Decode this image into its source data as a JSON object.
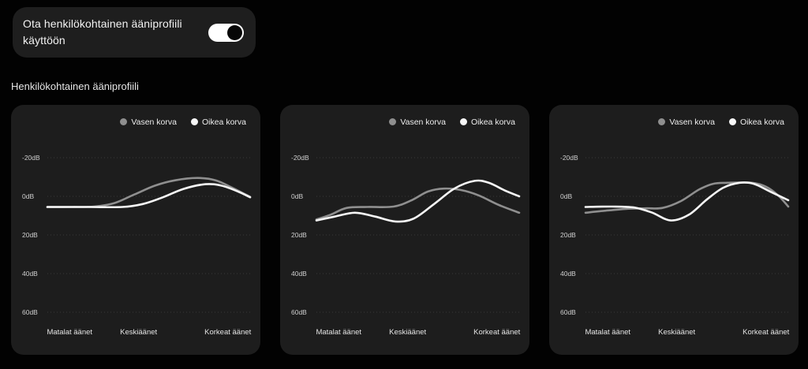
{
  "toggle_card": {
    "label": "Ota henkilökohtainen ääniprofiili käyttöön",
    "state": "on"
  },
  "section_title": "Henkilökohtainen ääniprofiili",
  "colors": {
    "page_bg": "#020202",
    "card_bg": "#1d1d1d",
    "grid_line": "#3d3d3d",
    "tick_text": "#cfcfcf",
    "axis_text": "#e3e3e3",
    "legend_text": "#ececec",
    "left_ear": "#8f8f8f",
    "right_ear": "#f7f7f7",
    "toggle_track": "#ffffff",
    "toggle_knob": "#070707"
  },
  "chart_data": [
    {
      "type": "line",
      "y_axis": {
        "unit": "dB",
        "inverted": true,
        "range": [
          -20,
          60
        ],
        "ticks": [
          {
            "label": "-20dB",
            "value": -20
          },
          {
            "label": "0dB",
            "value": 0
          },
          {
            "label": "20dB",
            "value": 20
          },
          {
            "label": "40dB",
            "value": 40
          },
          {
            "label": "60dB",
            "value": 60
          }
        ]
      },
      "x_labels": [
        "Matalat äänet",
        "Keskiäänet",
        "Korkeat äänet"
      ],
      "series": [
        {
          "name": "Vasen korva",
          "color": "#8f8f8f",
          "points": [
            [
              0,
              5.5
            ],
            [
              0.12,
              5.5
            ],
            [
              0.23,
              5.3
            ],
            [
              0.33,
              3.5
            ],
            [
              0.43,
              -1
            ],
            [
              0.53,
              -5.5
            ],
            [
              0.63,
              -8.3
            ],
            [
              0.74,
              -9.5
            ],
            [
              0.83,
              -8.3
            ],
            [
              0.92,
              -4
            ],
            [
              1,
              0.3
            ]
          ]
        },
        {
          "name": "Oikea korva",
          "color": "#f7f7f7",
          "points": [
            [
              0,
              5.5
            ],
            [
              0.2,
              5.5
            ],
            [
              0.37,
              5.5
            ],
            [
              0.47,
              4
            ],
            [
              0.57,
              0.5
            ],
            [
              0.67,
              -3.8
            ],
            [
              0.78,
              -6.3
            ],
            [
              0.86,
              -5.5
            ],
            [
              0.94,
              -2.5
            ],
            [
              1,
              0.5
            ]
          ]
        }
      ]
    },
    {
      "type": "line",
      "y_axis": {
        "unit": "dB",
        "inverted": true,
        "range": [
          -20,
          60
        ],
        "ticks": [
          {
            "label": "-20dB",
            "value": -20
          },
          {
            "label": "0dB",
            "value": 0
          },
          {
            "label": "20dB",
            "value": 20
          },
          {
            "label": "40dB",
            "value": 40
          },
          {
            "label": "60dB",
            "value": 60
          }
        ]
      },
      "x_labels": [
        "Matalat äänet",
        "Keskiäänet",
        "Korkeat äänet"
      ],
      "series": [
        {
          "name": "Vasen korva",
          "color": "#8f8f8f",
          "points": [
            [
              0,
              12
            ],
            [
              0.07,
              9.5
            ],
            [
              0.15,
              6
            ],
            [
              0.25,
              5.5
            ],
            [
              0.38,
              5.3
            ],
            [
              0.47,
              2
            ],
            [
              0.55,
              -2.5
            ],
            [
              0.63,
              -4
            ],
            [
              0.71,
              -3.3
            ],
            [
              0.8,
              -0.5
            ],
            [
              0.9,
              4.5
            ],
            [
              1,
              8.5
            ]
          ]
        },
        {
          "name": "Oikea korva",
          "color": "#f7f7f7",
          "points": [
            [
              0,
              12.5
            ],
            [
              0.09,
              10.5
            ],
            [
              0.19,
              8.5
            ],
            [
              0.29,
              10.5
            ],
            [
              0.39,
              13
            ],
            [
              0.48,
              11.5
            ],
            [
              0.58,
              4
            ],
            [
              0.68,
              -4
            ],
            [
              0.78,
              -8
            ],
            [
              0.85,
              -7
            ],
            [
              0.93,
              -3
            ],
            [
              1,
              0
            ]
          ]
        }
      ]
    },
    {
      "type": "line",
      "y_axis": {
        "unit": "dB",
        "inverted": true,
        "range": [
          -20,
          60
        ],
        "ticks": [
          {
            "label": "-20dB",
            "value": -20
          },
          {
            "label": "0dB",
            "value": 0
          },
          {
            "label": "20dB",
            "value": 20
          },
          {
            "label": "40dB",
            "value": 40
          },
          {
            "label": "60dB",
            "value": 60
          }
        ]
      },
      "x_labels": [
        "Matalat äänet",
        "Keskiäänet",
        "Korkeat äänet"
      ],
      "series": [
        {
          "name": "Vasen korva",
          "color": "#8f8f8f",
          "points": [
            [
              0,
              8.5
            ],
            [
              0.09,
              7.5
            ],
            [
              0.2,
              6.5
            ],
            [
              0.3,
              6.2
            ],
            [
              0.38,
              6
            ],
            [
              0.47,
              2.5
            ],
            [
              0.56,
              -3.5
            ],
            [
              0.63,
              -6.5
            ],
            [
              0.7,
              -7
            ],
            [
              0.82,
              -7
            ],
            [
              0.89,
              -5
            ],
            [
              0.95,
              -0.5
            ],
            [
              1,
              5.3
            ]
          ]
        },
        {
          "name": "Oikea korva",
          "color": "#f7f7f7",
          "points": [
            [
              0,
              5.5
            ],
            [
              0.13,
              5.3
            ],
            [
              0.24,
              5.8
            ],
            [
              0.33,
              8.5
            ],
            [
              0.42,
              12.5
            ],
            [
              0.51,
              9.5
            ],
            [
              0.6,
              1.5
            ],
            [
              0.68,
              -4.5
            ],
            [
              0.76,
              -7
            ],
            [
              0.83,
              -6.5
            ],
            [
              0.91,
              -2.5
            ],
            [
              1,
              2
            ]
          ]
        }
      ]
    }
  ]
}
